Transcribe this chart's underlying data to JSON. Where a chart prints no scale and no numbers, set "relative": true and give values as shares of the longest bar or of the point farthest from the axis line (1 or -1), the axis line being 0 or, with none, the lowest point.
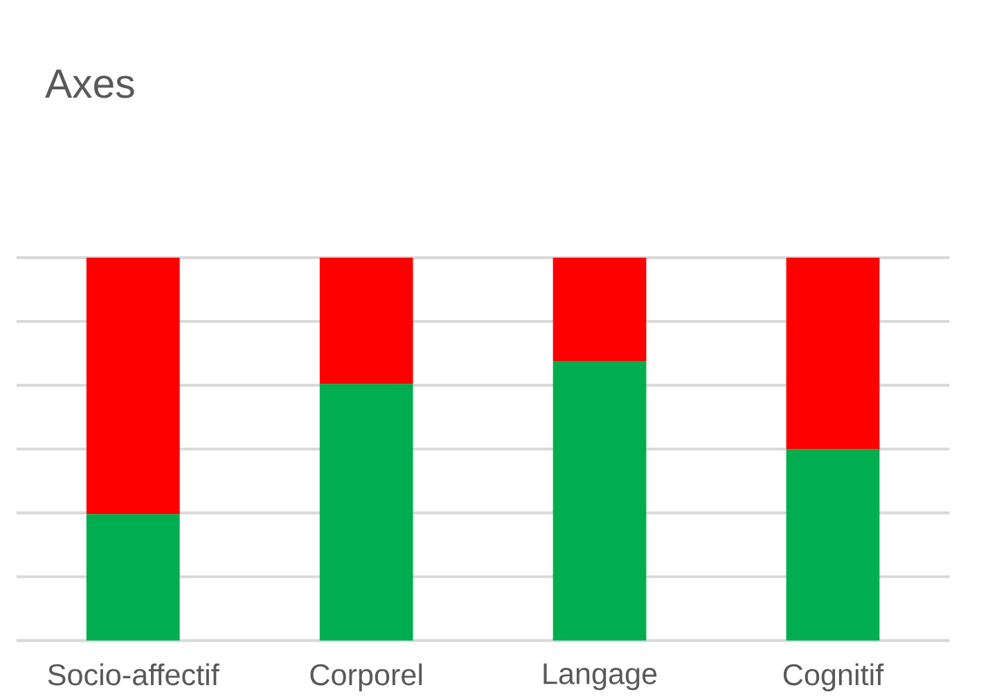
{
  "chart_data": {
    "type": "bar",
    "title": "Axes",
    "categories": [
      "Socio-affectif",
      "Corporel",
      "Langage",
      "Cognitif"
    ],
    "stacked": true,
    "relative": true,
    "grid": "y",
    "series": [
      {
        "color": "#00ae4f",
        "values": [
          0.33,
          0.67,
          0.73,
          0.5
        ]
      },
      {
        "color": "#ff0000",
        "values": [
          0.67,
          0.33,
          0.27,
          0.5
        ]
      }
    ]
  }
}
